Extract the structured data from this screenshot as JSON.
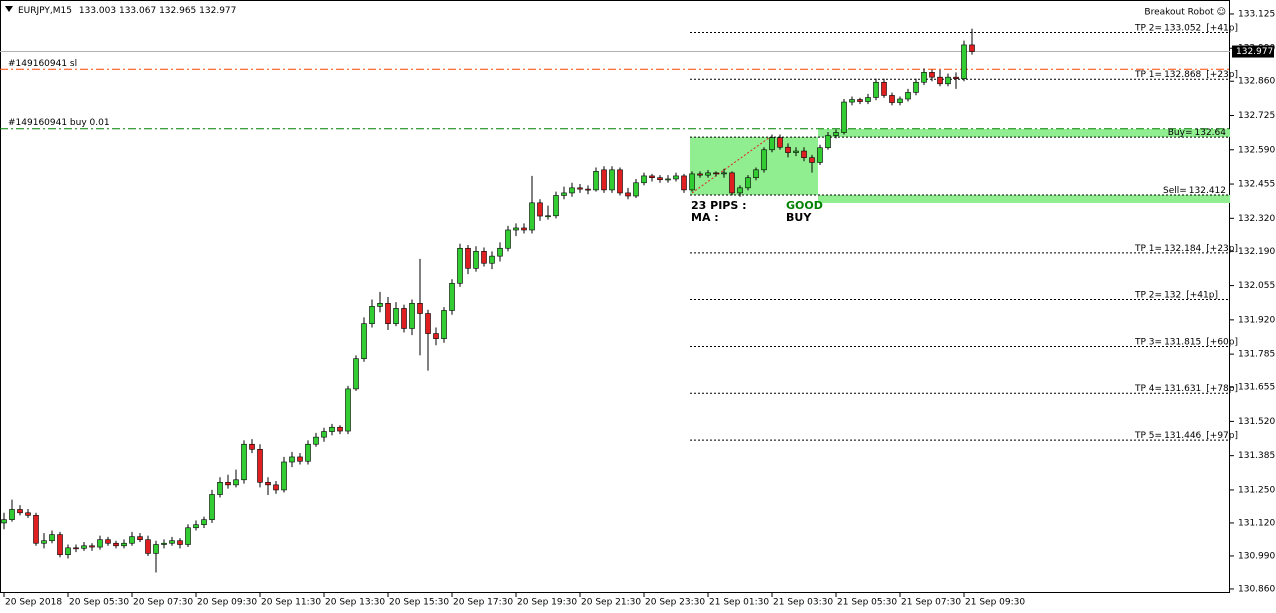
{
  "chart_data": {
    "type": "candlestick",
    "title": "EURJPY,M15",
    "up_color": "#32cd32",
    "down_color": "#e02020",
    "ylim": [
      130.844,
      133.18
    ],
    "yticks": [
      133.125,
      {
        "value": 132.99,
        "label": "132.990"
      },
      {
        "value": 132.86,
        "label": "132.860"
      },
      132.725,
      {
        "value": 132.59,
        "label": "132.590"
      },
      132.455,
      {
        "value": 132.32,
        "label": "132.320"
      },
      {
        "value": 132.19,
        "label": "132.190"
      },
      132.055,
      {
        "value": 131.92,
        "label": "131.920"
      },
      131.785,
      131.655,
      {
        "value": 131.52,
        "label": "131.520"
      },
      131.385,
      {
        "value": 131.25,
        "label": "131.250"
      },
      {
        "value": 131.12,
        "label": "131.120"
      },
      {
        "value": 130.99,
        "label": "130.990"
      },
      {
        "value": 130.86,
        "label": "130.860"
      }
    ],
    "xticks": [
      {
        "value": 0,
        "label": "20 Sep 2018"
      },
      {
        "value": 8,
        "label": "20 Sep 05:30"
      },
      {
        "value": 16,
        "label": "20 Sep 07:30"
      },
      {
        "value": 24,
        "label": "20 Sep 09:30"
      },
      {
        "value": 32,
        "label": "20 Sep 11:30"
      },
      {
        "value": 40,
        "label": "20 Sep 13:30"
      },
      {
        "value": 48,
        "label": "20 Sep 15:30"
      },
      {
        "value": 56,
        "label": "20 Sep 17:30"
      },
      {
        "value": 64,
        "label": "20 Sep 19:30"
      },
      {
        "value": 72,
        "label": "20 Sep 21:30"
      },
      {
        "value": 80,
        "label": "20 Sep 23:30"
      },
      {
        "value": 88,
        "label": "21 Sep 01:30"
      },
      {
        "value": 96,
        "label": "21 Sep 03:30"
      },
      {
        "value": 104,
        "label": "21 Sep 05:30"
      },
      {
        "value": 112,
        "label": "21 Sep 07:30"
      },
      {
        "value": 120,
        "label": "21 Sep 09:30"
      }
    ],
    "candles": [
      [
        131.12,
        131.16,
        131.095,
        131.133
      ],
      [
        131.133,
        131.212,
        131.125,
        131.173
      ],
      [
        131.173,
        131.19,
        131.15,
        131.16
      ],
      [
        131.16,
        131.175,
        131.14,
        131.15
      ],
      [
        131.15,
        131.16,
        131.03,
        131.04
      ],
      [
        131.04,
        131.08,
        131.02,
        131.05
      ],
      [
        131.05,
        131.09,
        131.04,
        131.074
      ],
      [
        131.074,
        131.085,
        130.985,
        130.995
      ],
      [
        130.995,
        131.035,
        130.98,
        131.022
      ],
      [
        131.022,
        131.035,
        131.005,
        131.02
      ],
      [
        131.02,
        131.045,
        131.01,
        131.03
      ],
      [
        131.03,
        131.04,
        131.01,
        131.025
      ],
      [
        131.025,
        131.07,
        131.015,
        131.054
      ],
      [
        131.054,
        131.065,
        131.03,
        131.04
      ],
      [
        131.04,
        131.05,
        131.02,
        131.03
      ],
      [
        131.03,
        131.055,
        131.02,
        131.04
      ],
      [
        131.04,
        131.085,
        131.03,
        131.066
      ],
      [
        131.066,
        131.08,
        131.045,
        131.054
      ],
      [
        131.054,
        131.07,
        130.99,
        131.0
      ],
      [
        131.0,
        131.05,
        130.925,
        131.035
      ],
      [
        131.035,
        131.055,
        131.02,
        131.04
      ],
      [
        131.04,
        131.065,
        131.03,
        131.05
      ],
      [
        131.05,
        131.06,
        131.02,
        131.035
      ],
      [
        131.035,
        131.115,
        131.025,
        131.101
      ],
      [
        131.101,
        131.13,
        131.09,
        131.113
      ],
      [
        131.113,
        131.145,
        131.1,
        131.133
      ],
      [
        131.133,
        131.25,
        131.12,
        131.232
      ],
      [
        131.232,
        131.3,
        131.22,
        131.28
      ],
      [
        131.28,
        131.31,
        131.255,
        131.27
      ],
      [
        131.27,
        131.33,
        131.26,
        131.29
      ],
      [
        131.29,
        131.445,
        131.275,
        131.43
      ],
      [
        131.43,
        131.45,
        131.395,
        131.41
      ],
      [
        131.41,
        131.43,
        131.26,
        131.28
      ],
      [
        131.28,
        131.3,
        131.23,
        131.27
      ],
      [
        131.27,
        131.285,
        131.235,
        131.25
      ],
      [
        131.25,
        131.38,
        131.24,
        131.36
      ],
      [
        131.36,
        131.4,
        131.34,
        131.38
      ],
      [
        131.38,
        131.395,
        131.35,
        131.363
      ],
      [
        131.363,
        131.445,
        131.35,
        131.43
      ],
      [
        131.43,
        131.475,
        131.42,
        131.458
      ],
      [
        131.458,
        131.495,
        131.44,
        131.48
      ],
      [
        131.48,
        131.51,
        131.465,
        131.497
      ],
      [
        131.497,
        131.505,
        131.47,
        131.482
      ],
      [
        131.482,
        131.66,
        131.47,
        131.648
      ],
      [
        131.648,
        131.78,
        131.64,
        131.767
      ],
      [
        131.767,
        131.93,
        131.755,
        131.905
      ],
      [
        131.905,
        132.0,
        131.89,
        131.973
      ],
      [
        131.973,
        132.03,
        131.95,
        131.985
      ],
      [
        131.985,
        132.01,
        131.88,
        131.905
      ],
      [
        131.905,
        131.99,
        131.895,
        131.965
      ],
      [
        131.965,
        131.98,
        131.87,
        131.886
      ],
      [
        131.886,
        132.0,
        131.86,
        131.985
      ],
      [
        131.985,
        132.16,
        131.78,
        131.945
      ],
      [
        131.945,
        131.96,
        131.72,
        131.866
      ],
      [
        131.866,
        131.89,
        131.82,
        131.846
      ],
      [
        131.846,
        131.97,
        131.83,
        131.957
      ],
      [
        131.957,
        132.08,
        131.94,
        132.064
      ],
      [
        132.064,
        132.22,
        132.05,
        132.202
      ],
      [
        132.202,
        132.215,
        132.1,
        132.123
      ],
      [
        132.123,
        132.21,
        132.11,
        132.19
      ],
      [
        132.19,
        132.205,
        132.13,
        132.143
      ],
      [
        132.143,
        132.19,
        132.12,
        132.171
      ],
      [
        132.171,
        132.225,
        132.15,
        132.202
      ],
      [
        132.202,
        132.29,
        132.19,
        132.274
      ],
      [
        132.274,
        132.3,
        132.25,
        132.282
      ],
      [
        132.282,
        132.3,
        132.26,
        132.274
      ],
      [
        132.274,
        132.487,
        132.26,
        132.381
      ],
      [
        132.381,
        132.395,
        132.31,
        132.329
      ],
      [
        132.329,
        132.37,
        132.315,
        132.33
      ],
      [
        132.33,
        132.425,
        132.32,
        132.41
      ],
      [
        132.41,
        132.445,
        132.395,
        132.42
      ],
      [
        132.42,
        132.46,
        132.405,
        132.44
      ],
      [
        132.44,
        132.455,
        132.42,
        132.435
      ],
      [
        132.435,
        132.45,
        132.415,
        132.432
      ],
      [
        132.432,
        132.52,
        132.425,
        132.505
      ],
      [
        132.511,
        132.525,
        132.42,
        132.432
      ],
      [
        132.432,
        132.525,
        132.42,
        132.511
      ],
      [
        132.511,
        132.52,
        132.41,
        132.42
      ],
      [
        132.42,
        132.44,
        132.395,
        132.408
      ],
      [
        132.408,
        132.475,
        132.4,
        132.46
      ],
      [
        132.46,
        132.5,
        132.45,
        132.487
      ],
      [
        132.487,
        132.495,
        132.465,
        132.48
      ],
      [
        132.48,
        132.49,
        132.46,
        132.472
      ],
      [
        132.472,
        132.49,
        132.46,
        132.475
      ],
      [
        132.475,
        132.5,
        132.465,
        132.487
      ],
      [
        132.487,
        132.495,
        132.42,
        132.432
      ],
      [
        132.432,
        132.505,
        132.425,
        132.495
      ],
      [
        132.495,
        132.505,
        132.48,
        132.49
      ],
      [
        132.49,
        132.51,
        132.48,
        132.499
      ],
      [
        132.499,
        132.505,
        132.485,
        132.495
      ],
      [
        132.495,
        132.515,
        132.48,
        132.499
      ],
      [
        132.499,
        132.505,
        132.41,
        132.42
      ],
      [
        132.42,
        132.45,
        132.405,
        132.44
      ],
      [
        132.44,
        132.49,
        132.43,
        132.48
      ],
      [
        132.48,
        132.52,
        132.47,
        132.511
      ],
      [
        132.511,
        132.6,
        132.5,
        132.59
      ],
      [
        132.59,
        132.65,
        132.58,
        132.638
      ],
      [
        132.638,
        132.65,
        132.59,
        132.6
      ],
      [
        132.6,
        132.615,
        132.56,
        132.579
      ],
      [
        132.579,
        132.6,
        132.565,
        132.585
      ],
      [
        132.585,
        132.6,
        132.545,
        132.559
      ],
      [
        132.559,
        132.57,
        132.5,
        132.54
      ],
      [
        132.54,
        132.61,
        132.53,
        132.598
      ],
      [
        132.598,
        132.66,
        132.59,
        132.646
      ],
      [
        132.646,
        132.67,
        132.635,
        132.658
      ],
      [
        132.658,
        132.79,
        132.65,
        132.778
      ],
      [
        132.778,
        132.8,
        132.765,
        132.788
      ],
      [
        132.788,
        132.795,
        132.77,
        132.78
      ],
      [
        132.78,
        132.81,
        132.77,
        132.796
      ],
      [
        132.796,
        132.87,
        132.785,
        132.856
      ],
      [
        132.856,
        132.87,
        132.795,
        132.804
      ],
      [
        132.804,
        132.815,
        132.765,
        132.776
      ],
      [
        132.776,
        132.8,
        132.765,
        132.79
      ],
      [
        132.79,
        132.83,
        132.78,
        132.816
      ],
      [
        132.816,
        132.87,
        132.805,
        132.856
      ],
      [
        132.856,
        132.91,
        132.845,
        132.895
      ],
      [
        132.895,
        132.905,
        132.86,
        132.876
      ],
      [
        132.876,
        132.905,
        132.84,
        132.85
      ],
      [
        132.85,
        132.89,
        132.84,
        132.876
      ],
      [
        132.876,
        132.895,
        132.83,
        132.87
      ],
      [
        132.87,
        133.02,
        132.86,
        133.003
      ],
      [
        133.003,
        133.067,
        132.965,
        132.977
      ]
    ],
    "order_lines": [
      {
        "label": "#149160941 sl",
        "price": 132.907,
        "color": "#ff4500"
      },
      {
        "label": "#149160941 buy 0.01",
        "price": 132.673,
        "color": "#008000"
      }
    ],
    "levels": [
      {
        "label": "TP 2=",
        "price": 133.052,
        "note": "[+41p]"
      },
      {
        "label": "TP 1=",
        "price": 132.868,
        "note": "[+23p]"
      },
      {
        "label": "Buy=",
        "price": 132.64
      },
      {
        "label": "Sell=",
        "price": 132.412
      },
      {
        "label": "TP 1=",
        "price": 132.184,
        "note": "[+23p]"
      },
      {
        "label": "TP 2=",
        "price": 132.0,
        "note": "[+41p]"
      },
      {
        "label": "TP 3=",
        "price": 131.815,
        "note": "[+60p]"
      },
      {
        "label": "TP 4=",
        "price": 131.631,
        "note": "[+78p]"
      },
      {
        "label": "TP 5=",
        "price": 131.446,
        "note": "[+97p]"
      }
    ],
    "robot_name": "Breakout Robot ☺",
    "annotations": {
      "pips": "23 PIPS :",
      "ma": "MA :",
      "status": "GOOD",
      "signal": "BUY"
    }
  }
}
